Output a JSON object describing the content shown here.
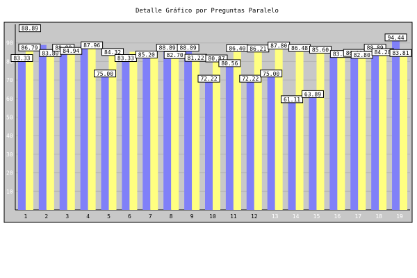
{
  "chart_data": {
    "type": "bar",
    "title": "Detalle Gráfico por Preguntas Paralelo",
    "categories": [
      "1",
      "2",
      "3",
      "4",
      "5",
      "6",
      "7",
      "8",
      "9",
      "10",
      "11",
      "12",
      "13",
      "14",
      "15",
      "16",
      "17",
      "18",
      "19"
    ],
    "light_categories": [
      "13",
      "14",
      "15",
      "16",
      "17",
      "18",
      "19"
    ],
    "series": [
      {
        "values": [
          83.33,
          88.89,
          88.89,
          88.89,
          75.0,
          83.33,
          85.2,
          88.89,
          88.89,
          72.22,
          80.56,
          72.22,
          75.0,
          61.11,
          63.89,
          83.33,
          86.11,
          88.89,
          94.44
        ]
      },
      {
        "values": [
          86.79,
          83.8,
          84.94,
          87.96,
          84.32,
          85.2,
          83.59,
          82.7,
          81.22,
          80.87,
          86.4,
          86.21,
          87.8,
          86.48,
          85.6,
          83.27,
          82.8,
          84.28,
          83.81
        ]
      }
    ],
    "value_labels": [
      [
        "83.33",
        "",
        "88.89",
        "",
        "75.00",
        "83.33",
        "85.20",
        "88.89",
        "88.89",
        "72.22",
        "80.56",
        "72.22",
        "75.00",
        "61.11",
        "63.89",
        "",
        "86.11",
        "88.89",
        "94.44"
      ],
      [
        "86.79",
        "83.80",
        "84.94",
        "87.96",
        "84.32",
        "",
        "",
        "82.70",
        "81.22",
        "80.87",
        "86.40",
        "86.21",
        "87.80",
        "86.48",
        "85.60",
        "83.27",
        "82.80",
        "84.28",
        "83.81"
      ]
    ],
    "top_label_col1": "88.89",
    "yticks": [
      10,
      20,
      30,
      40,
      50,
      60,
      70,
      80,
      90
    ],
    "ylim": [
      0,
      100
    ],
    "colors": {
      "series1": "#8080f8",
      "series2": "#ffff80",
      "plot_bg": "#c8c8c8",
      "outer_bg": "#c8c8c8"
    },
    "grid": true,
    "legend": "none"
  }
}
